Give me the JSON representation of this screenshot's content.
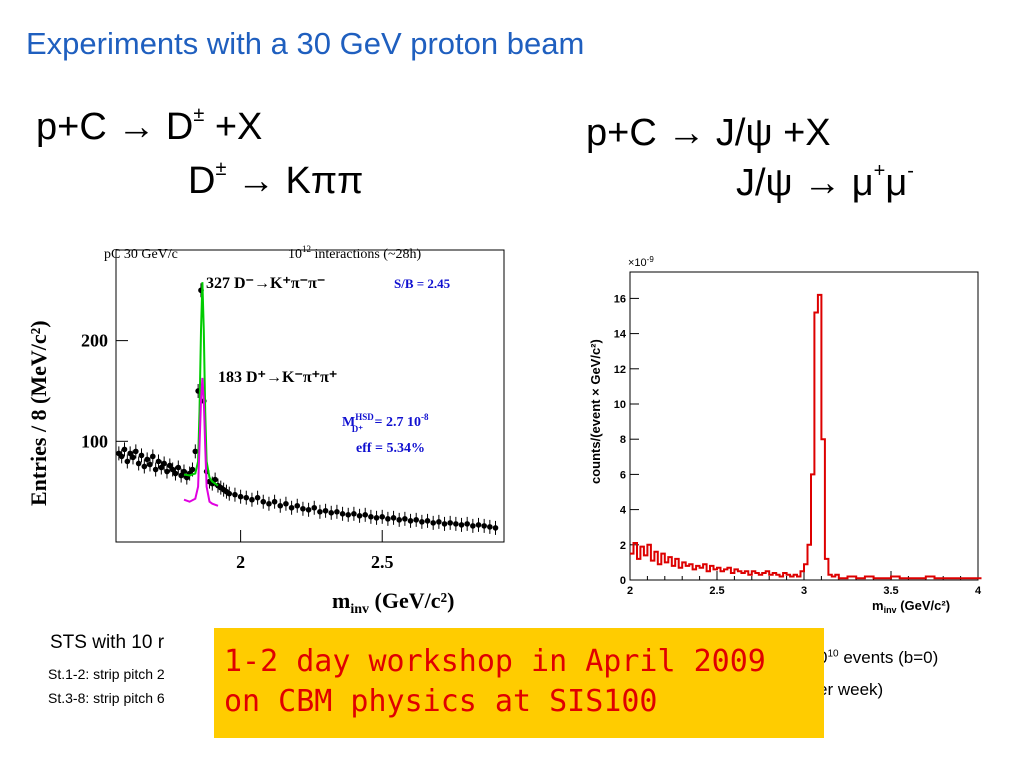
{
  "title": "Experiments with a 30 GeV proton beam",
  "left_reaction": {
    "line1_prefix": "p+C → D",
    "line1_sup": "±",
    "line1_suffix": " +X",
    "line2_prefix": "D",
    "line2_sup": "±",
    "line2_suffix": " → Kππ"
  },
  "right_reaction": {
    "line1": "p+C → J/ψ +X",
    "line2_prefix": "J/ψ → μ",
    "line2_sup1": "+",
    "line2_mid": "μ",
    "line2_sup2": "-"
  },
  "notes": {
    "sts_main": "STS with 10 r",
    "sts_line1": "St.1-2: strip pitch 2",
    "sts_line2": "St.3-8: strip pitch 6",
    "right_line1_pre": "0",
    "right_line1_sup": "10",
    "right_line1_post": " events (b=0)",
    "right_line2": "er week)"
  },
  "banner": {
    "line1": "1-2 day workshop in April 2009",
    "line2": "on CBM  physics at SIS100"
  },
  "chart_data": [
    {
      "type": "scatter",
      "header_left": "pC   30 GeV/c",
      "header_right_pre": "10",
      "header_right_sup": "12",
      "header_right_post": " interactions (~28h)",
      "ylabel": "Entries / 8 (MeV/c²)",
      "xlabel": "m",
      "xlabel_sub": "inv",
      "xlabel_units": " (GeV/c²)",
      "xlim": [
        1.56,
        2.93
      ],
      "ylim": [
        0,
        290
      ],
      "x_ticks": [
        2,
        2.5
      ],
      "x_tick_labels": [
        "2",
        "2.5"
      ],
      "y_ticks": [
        100,
        200
      ],
      "y_tick_labels": [
        "100",
        "200"
      ],
      "annotations": {
        "dminus": "327 D⁻→K⁺π⁻π⁻",
        "dplus": "183 D⁺→K⁻π⁺π⁺",
        "sb": "S/B = 2.45",
        "m_pre": "M",
        "m_sup": "HSD",
        "m_sub": "D⁺",
        "m_post": " = 2.7 10",
        "m_exp": "-8",
        "eff": "eff = 5.34%"
      },
      "series": [
        {
          "name": "data",
          "x": [
            1.57,
            1.58,
            1.59,
            1.6,
            1.61,
            1.62,
            1.63,
            1.64,
            1.65,
            1.66,
            1.67,
            1.68,
            1.69,
            1.7,
            1.71,
            1.72,
            1.73,
            1.74,
            1.75,
            1.76,
            1.77,
            1.78,
            1.79,
            1.8,
            1.81,
            1.82,
            1.83,
            1.84,
            1.85,
            1.86,
            1.87,
            1.88,
            1.89,
            1.9,
            1.91,
            1.92,
            1.93,
            1.94,
            1.95,
            1.96,
            1.98,
            2.0,
            2.02,
            2.04,
            2.06,
            2.08,
            2.1,
            2.12,
            2.14,
            2.16,
            2.18,
            2.2,
            2.22,
            2.24,
            2.26,
            2.28,
            2.3,
            2.32,
            2.34,
            2.36,
            2.38,
            2.4,
            2.42,
            2.44,
            2.46,
            2.48,
            2.5,
            2.52,
            2.54,
            2.56,
            2.58,
            2.6,
            2.62,
            2.64,
            2.66,
            2.68,
            2.7,
            2.72,
            2.74,
            2.76,
            2.78,
            2.8,
            2.82,
            2.84,
            2.86,
            2.88,
            2.9
          ],
          "y": [
            88,
            85,
            92,
            80,
            88,
            84,
            90,
            78,
            86,
            75,
            82,
            77,
            85,
            72,
            80,
            74,
            78,
            70,
            76,
            72,
            68,
            74,
            66,
            70,
            64,
            68,
            72,
            90,
            150,
            250,
            140,
            70,
            60,
            58,
            62,
            56,
            54,
            52,
            50,
            48,
            47,
            45,
            44,
            42,
            44,
            40,
            38,
            40,
            36,
            38,
            34,
            36,
            33,
            32,
            34,
            30,
            31,
            29,
            30,
            28,
            27,
            28,
            26,
            27,
            25,
            24,
            25,
            23,
            24,
            22,
            23,
            21,
            22,
            20,
            21,
            19,
            20,
            18,
            19,
            18,
            17,
            18,
            16,
            17,
            16,
            15,
            14
          ]
        },
        {
          "name": "fit D-",
          "x": [
            1.8,
            1.82,
            1.84,
            1.85,
            1.855,
            1.86,
            1.865,
            1.87,
            1.875,
            1.88,
            1.89,
            1.9,
            1.92
          ],
          "y": [
            67,
            66,
            68,
            80,
            130,
            210,
            258,
            210,
            130,
            80,
            64,
            60,
            56
          ]
        },
        {
          "name": "fit D+",
          "x": [
            1.8,
            1.82,
            1.84,
            1.85,
            1.855,
            1.86,
            1.865,
            1.87,
            1.875,
            1.88,
            1.89,
            1.9,
            1.92
          ],
          "y": [
            42,
            40,
            43,
            55,
            95,
            140,
            163,
            140,
            95,
            55,
            40,
            38,
            36
          ]
        }
      ],
      "colors": {
        "data": "#000000",
        "fit_D-": "#00cc00",
        "fit_D+": "#e000e0",
        "annotation_blue": "#1010d0"
      }
    },
    {
      "type": "line",
      "exponent_label": "×10",
      "exponent_sup": "-9",
      "ylabel": "counts/(event × GeV/c²)",
      "xlabel": "m",
      "xlabel_sub": "inv",
      "xlabel_units": " (GeV/c²)",
      "xlim": [
        2,
        4
      ],
      "ylim": [
        0,
        17.5
      ],
      "x_ticks": [
        2,
        2.5,
        3,
        3.5,
        4
      ],
      "x_tick_labels": [
        "2",
        "2.5",
        "3",
        "3.5",
        "4"
      ],
      "y_ticks": [
        0,
        2,
        4,
        6,
        8,
        10,
        12,
        14,
        16
      ],
      "y_tick_labels": [
        "0",
        "2",
        "4",
        "6",
        "8",
        "10",
        "12",
        "14",
        "16"
      ],
      "series": [
        {
          "name": "J/psi",
          "x": [
            2.0,
            2.02,
            2.04,
            2.06,
            2.08,
            2.1,
            2.12,
            2.14,
            2.16,
            2.18,
            2.2,
            2.22,
            2.24,
            2.26,
            2.28,
            2.3,
            2.32,
            2.34,
            2.36,
            2.38,
            2.4,
            2.42,
            2.44,
            2.46,
            2.48,
            2.5,
            2.52,
            2.54,
            2.56,
            2.58,
            2.6,
            2.62,
            2.64,
            2.66,
            2.68,
            2.7,
            2.72,
            2.74,
            2.76,
            2.78,
            2.8,
            2.82,
            2.84,
            2.86,
            2.88,
            2.9,
            2.92,
            2.94,
            2.96,
            2.98,
            3.0,
            3.02,
            3.04,
            3.06,
            3.08,
            3.1,
            3.12,
            3.14,
            3.16,
            3.18,
            3.2,
            3.25,
            3.3,
            3.35,
            3.4,
            3.45,
            3.5,
            3.55,
            3.6,
            3.65,
            3.7,
            3.75,
            3.8,
            3.85,
            3.9,
            3.95,
            4.0
          ],
          "y": [
            1.5,
            2.1,
            1.2,
            1.9,
            1.4,
            2.0,
            1.1,
            1.6,
            0.9,
            1.5,
            1.0,
            1.3,
            0.8,
            1.2,
            0.7,
            1.0,
            0.8,
            0.9,
            0.6,
            0.8,
            0.7,
            0.9,
            0.5,
            0.8,
            0.6,
            0.7,
            0.5,
            0.6,
            0.7,
            0.4,
            0.6,
            0.5,
            0.4,
            0.5,
            0.3,
            0.5,
            0.4,
            0.3,
            0.4,
            0.5,
            0.3,
            0.4,
            0.3,
            0.2,
            0.4,
            0.3,
            0.2,
            0.3,
            0.2,
            0.5,
            0.9,
            2.0,
            6.0,
            15.2,
            16.2,
            8.0,
            1.2,
            0.3,
            0.2,
            0.3,
            0.1,
            0.2,
            0.1,
            0.2,
            0.1,
            0.1,
            0.2,
            0.1,
            0.1,
            0.1,
            0.2,
            0.1,
            0.1,
            0.1,
            0.1,
            0.1,
            0.1
          ]
        }
      ],
      "colors": {
        "line": "#dd0000"
      }
    }
  ]
}
